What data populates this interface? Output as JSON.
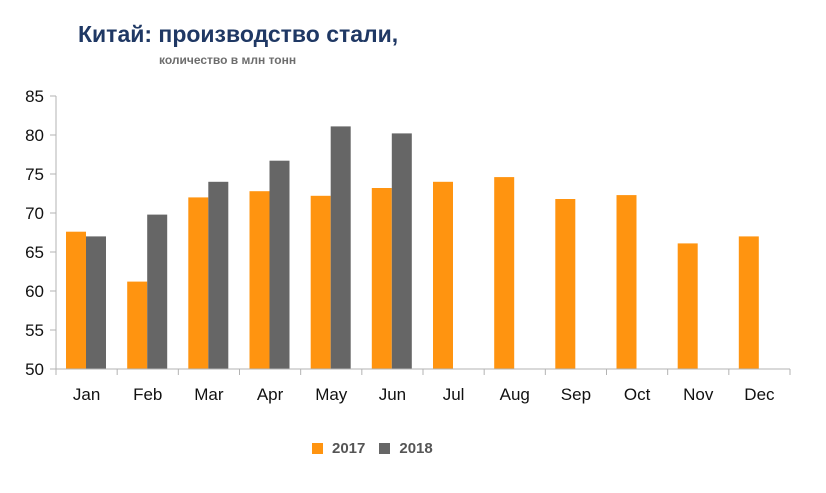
{
  "chart_data": {
    "type": "bar",
    "title": "Китай: производство стали,",
    "subtitle": "количество в млн тонн",
    "categories": [
      "Jan",
      "Feb",
      "Mar",
      "Apr",
      "May",
      "Jun",
      "Jul",
      "Aug",
      "Sep",
      "Oct",
      "Nov",
      "Dec"
    ],
    "series": [
      {
        "name": "2017",
        "color": "#ff9410",
        "values": [
          67.6,
          61.2,
          72.0,
          72.8,
          72.2,
          73.2,
          74.0,
          74.6,
          71.8,
          72.3,
          66.1,
          67.0
        ]
      },
      {
        "name": "2018",
        "color": "#666666",
        "values": [
          67.0,
          69.8,
          74.0,
          76.7,
          81.1,
          80.2,
          null,
          null,
          null,
          null,
          null,
          null
        ]
      }
    ],
    "ylim": [
      50,
      85
    ],
    "yticks": [
      50,
      55,
      60,
      65,
      70,
      75,
      80,
      85
    ],
    "xlabel": "",
    "ylabel": "",
    "grid": false,
    "legend_position": "bottom"
  }
}
